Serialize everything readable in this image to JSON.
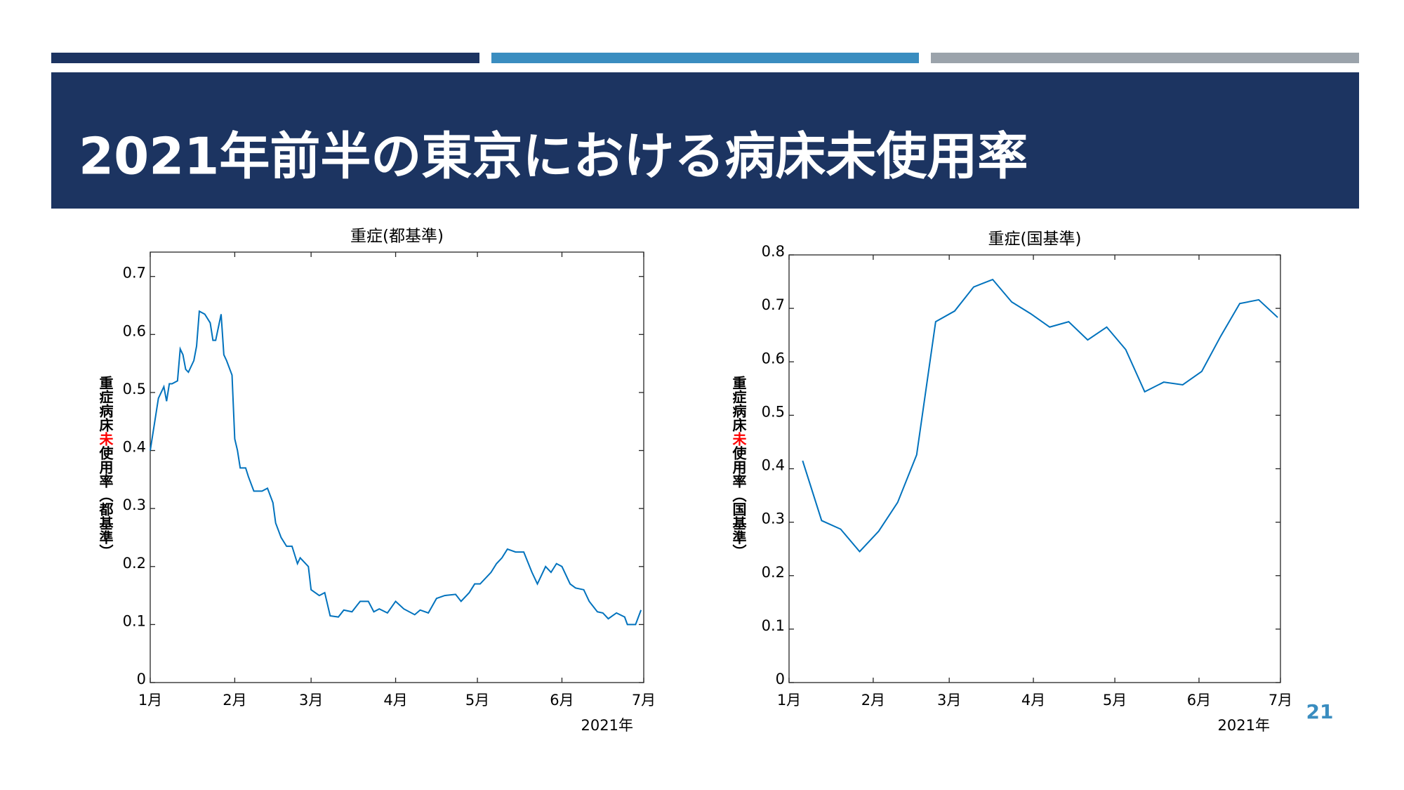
{
  "slide": {
    "title": "2021年前半の東京における病床未使用率",
    "page_number": "21"
  },
  "chart_data": [
    {
      "type": "line",
      "title": "重症(都基準)",
      "ylabel": [
        "重症病床",
        "未",
        "使用率（都基準）"
      ],
      "ylabel_colors": [
        "#000000",
        "#ff0000",
        "#000000"
      ],
      "xlabel": "2021年",
      "xlim": [
        0,
        181
      ],
      "xticks": [
        {
          "value": 0,
          "label": "1月"
        },
        {
          "value": 31,
          "label": "2月"
        },
        {
          "value": 59,
          "label": "3月"
        },
        {
          "value": 90,
          "label": "4月"
        },
        {
          "value": 120,
          "label": "5月"
        },
        {
          "value": 151,
          "label": "6月"
        },
        {
          "value": 181,
          "label": "7月"
        }
      ],
      "ylim": [
        0,
        0.742
      ],
      "yticks": [
        0,
        0.1,
        0.2,
        0.3,
        0.4,
        0.5,
        0.6,
        0.7
      ],
      "series": [
        {
          "color": "#0072bd",
          "x": [
            0,
            2,
            3,
            5,
            6,
            7,
            8,
            10,
            11,
            12,
            13,
            14,
            16,
            17,
            18,
            20,
            22,
            23,
            24,
            26,
            27,
            28,
            30,
            31,
            32,
            33,
            35,
            36,
            38,
            41,
            43,
            45,
            46,
            48,
            50,
            52,
            54,
            55,
            58,
            59,
            62,
            64,
            66,
            69,
            71,
            74,
            77,
            80,
            82,
            84,
            87,
            90,
            93,
            97,
            99,
            102,
            105,
            108,
            112,
            114,
            117,
            119,
            121,
            125,
            127,
            129,
            131,
            134,
            137,
            140,
            142,
            145,
            147,
            149,
            151,
            154,
            156,
            159,
            161,
            164,
            166,
            168,
            171,
            174,
            175,
            178,
            180
          ],
          "values": [
            0.4,
            0.46,
            0.49,
            0.51,
            0.485,
            0.515,
            0.515,
            0.52,
            0.575,
            0.565,
            0.54,
            0.535,
            0.555,
            0.58,
            0.64,
            0.635,
            0.62,
            0.59,
            0.59,
            0.635,
            0.565,
            0.555,
            0.53,
            0.42,
            0.4,
            0.37,
            0.37,
            0.355,
            0.33,
            0.33,
            0.335,
            0.31,
            0.275,
            0.25,
            0.235,
            0.235,
            0.205,
            0.215,
            0.2,
            0.16,
            0.15,
            0.155,
            0.115,
            0.113,
            0.125,
            0.122,
            0.14,
            0.14,
            0.122,
            0.127,
            0.12,
            0.14,
            0.127,
            0.117,
            0.125,
            0.12,
            0.145,
            0.15,
            0.152,
            0.14,
            0.155,
            0.17,
            0.17,
            0.19,
            0.205,
            0.215,
            0.23,
            0.225,
            0.225,
            0.19,
            0.17,
            0.2,
            0.19,
            0.205,
            0.2,
            0.17,
            0.163,
            0.16,
            0.14,
            0.122,
            0.12,
            0.11,
            0.12,
            0.113,
            0.1,
            0.1,
            0.125
          ]
        }
      ]
    },
    {
      "type": "line",
      "title": "重症(国基準)",
      "ylabel": [
        "重症病床",
        "未",
        "使用率（国基準）"
      ],
      "ylabel_colors": [
        "#000000",
        "#ff0000",
        "#000000"
      ],
      "xlabel": "2021年",
      "xlim": [
        0,
        181
      ],
      "xticks": [
        {
          "value": 0,
          "label": "1月"
        },
        {
          "value": 31,
          "label": "2月"
        },
        {
          "value": 59,
          "label": "3月"
        },
        {
          "value": 90,
          "label": "4月"
        },
        {
          "value": 120,
          "label": "5月"
        },
        {
          "value": 151,
          "label": "6月"
        },
        {
          "value": 181,
          "label": "7月"
        }
      ],
      "ylim": [
        0,
        0.8
      ],
      "yticks": [
        0,
        0.1,
        0.2,
        0.3,
        0.4,
        0.5,
        0.6,
        0.7,
        0.8
      ],
      "series": [
        {
          "color": "#0072bd",
          "x": [
            5,
            12,
            19,
            26,
            33,
            40,
            47,
            54,
            61,
            68,
            75,
            82,
            89,
            96,
            103,
            110,
            117,
            124,
            131,
            138,
            145,
            152,
            159,
            166,
            173,
            180
          ],
          "values": [
            0.415,
            0.303,
            0.287,
            0.245,
            0.283,
            0.337,
            0.426,
            0.675,
            0.695,
            0.74,
            0.754,
            0.712,
            0.69,
            0.665,
            0.675,
            0.641,
            0.665,
            0.623,
            0.544,
            0.562,
            0.557,
            0.582,
            0.648,
            0.709,
            0.716,
            0.683
          ]
        }
      ]
    }
  ]
}
